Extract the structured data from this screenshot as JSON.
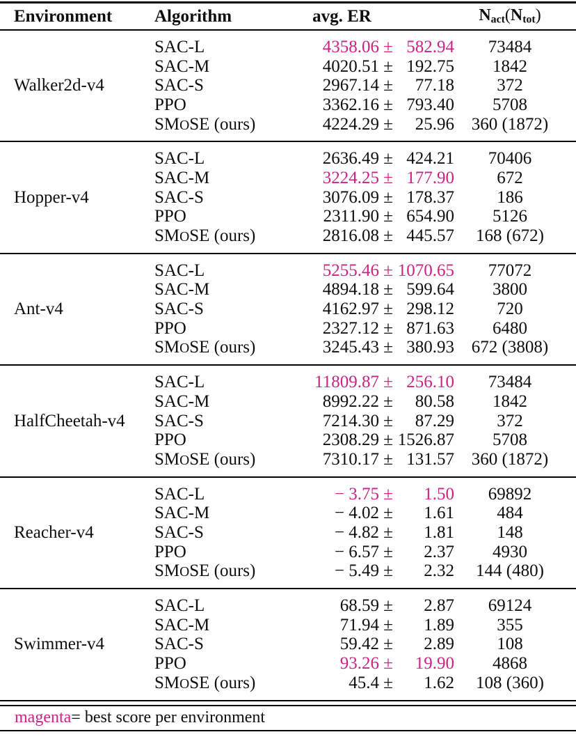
{
  "table": {
    "header": {
      "environment": "Environment",
      "algorithm": "Algorithm",
      "avg_er": "avg. ER",
      "n_header": {
        "n1": "N",
        "sub1": "act",
        "open": "(",
        "n2": "N",
        "sub2": "tot",
        "close": ")"
      }
    },
    "pm_symbol": "±",
    "groups": [
      {
        "environment": "Walker2d-v4",
        "rows": [
          {
            "algorithm": "SAC-L",
            "mean": "4358.06",
            "err": "582.94",
            "n": "73484",
            "best": true
          },
          {
            "algorithm": "SAC-M",
            "mean": "4020.51",
            "err": "192.75",
            "n": "1842",
            "best": false
          },
          {
            "algorithm": "SAC-S",
            "mean": "2967.14",
            "err": "77.18",
            "n": "372",
            "best": false
          },
          {
            "algorithm": "PPO",
            "mean": "3362.16",
            "err": "793.40",
            "n": "5708",
            "best": false
          },
          {
            "algorithm": "SMoSE (ours)",
            "mean": "4224.29",
            "err": "25.96",
            "n": "360 (1872)",
            "best": false
          }
        ]
      },
      {
        "environment": "Hopper-v4",
        "rows": [
          {
            "algorithm": "SAC-L",
            "mean": "2636.49",
            "err": "424.21",
            "n": "70406",
            "best": false
          },
          {
            "algorithm": "SAC-M",
            "mean": "3224.25",
            "err": "177.90",
            "n": "672",
            "best": true
          },
          {
            "algorithm": "SAC-S",
            "mean": "3076.09",
            "err": "178.37",
            "n": "186",
            "best": false
          },
          {
            "algorithm": "PPO",
            "mean": "2311.90",
            "err": "654.90",
            "n": "5126",
            "best": false
          },
          {
            "algorithm": "SMoSE (ours)",
            "mean": "2816.08",
            "err": "445.57",
            "n": "168 (672)",
            "best": false
          }
        ]
      },
      {
        "environment": "Ant-v4",
        "rows": [
          {
            "algorithm": "SAC-L",
            "mean": "5255.46",
            "err": "1070.65",
            "n": "77072",
            "best": true
          },
          {
            "algorithm": "SAC-M",
            "mean": "4894.18",
            "err": "599.64",
            "n": "3800",
            "best": false
          },
          {
            "algorithm": "SAC-S",
            "mean": "4162.97",
            "err": "298.12",
            "n": "720",
            "best": false
          },
          {
            "algorithm": "PPO",
            "mean": "2327.12",
            "err": "871.63",
            "n": "6480",
            "best": false
          },
          {
            "algorithm": "SMoSE (ours)",
            "mean": "3245.43",
            "err": "380.93",
            "n": "672 (3808)",
            "best": false
          }
        ]
      },
      {
        "environment": "HalfCheetah-v4",
        "rows": [
          {
            "algorithm": "SAC-L",
            "mean": "11809.87",
            "err": "256.10",
            "n": "73484",
            "best": true
          },
          {
            "algorithm": "SAC-M",
            "mean": "8992.22",
            "err": "80.58",
            "n": "1842",
            "best": false
          },
          {
            "algorithm": "SAC-S",
            "mean": "7214.30",
            "err": "87.29",
            "n": "372",
            "best": false
          },
          {
            "algorithm": "PPO",
            "mean": "2308.29",
            "err": "1526.87",
            "n": "5708",
            "best": false
          },
          {
            "algorithm": "SMoSE (ours)",
            "mean": "7310.17",
            "err": "131.57",
            "n": "360 (1872)",
            "best": false
          }
        ]
      },
      {
        "environment": "Reacher-v4",
        "rows": [
          {
            "algorithm": "SAC-L",
            "mean": "− 3.75",
            "err": "1.50",
            "n": "69892",
            "best": true
          },
          {
            "algorithm": "SAC-M",
            "mean": "− 4.02",
            "err": "1.61",
            "n": "484",
            "best": false
          },
          {
            "algorithm": "SAC-S",
            "mean": "− 4.82",
            "err": "1.81",
            "n": "148",
            "best": false
          },
          {
            "algorithm": "PPO",
            "mean": "− 6.57",
            "err": "2.37",
            "n": "4930",
            "best": false
          },
          {
            "algorithm": "SMoSE (ours)",
            "mean": "− 5.49",
            "err": "2.32",
            "n": "144 (480)",
            "best": false
          }
        ]
      },
      {
        "environment": "Swimmer-v4",
        "rows": [
          {
            "algorithm": "SAC-L",
            "mean": "68.59",
            "err": "2.87",
            "n": "69124",
            "best": false
          },
          {
            "algorithm": "SAC-M",
            "mean": "71.94",
            "err": "1.89",
            "n": "355",
            "best": false
          },
          {
            "algorithm": "SAC-S",
            "mean": "59.42",
            "err": "2.89",
            "n": "108",
            "best": false
          },
          {
            "algorithm": "PPO",
            "mean": "93.26",
            "err": "19.90",
            "n": "4868",
            "best": true
          },
          {
            "algorithm": "SMoSE (ours)",
            "mean": "45.4",
            "err": "1.62",
            "n": "108 (360)",
            "best": false
          }
        ]
      }
    ],
    "footer": {
      "highlight": "magenta",
      "text": " = best score per environment"
    }
  },
  "colors": {
    "best_highlight": "#cb2286",
    "text": "#0e0e0e",
    "background": "#ffffff"
  }
}
